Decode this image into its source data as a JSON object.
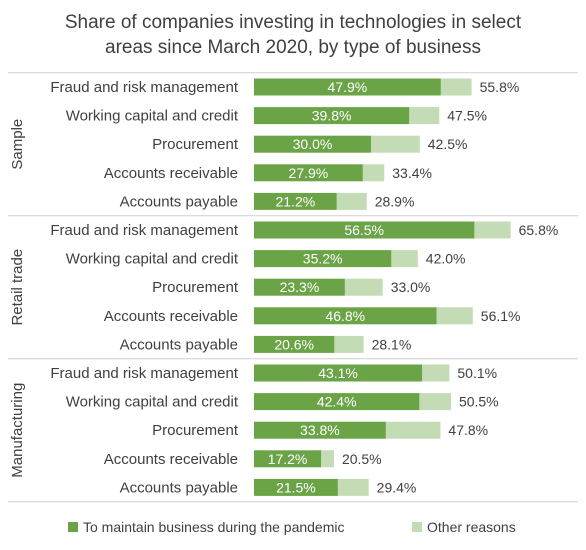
{
  "chart_data": {
    "type": "bar",
    "orientation": "horizontal",
    "stacked": true,
    "title_lines": [
      "Share of companies investing in technologies in select",
      "areas since March 2020, by type of business"
    ],
    "xlim": [
      0,
      70
    ],
    "groups": [
      {
        "name": "Sample",
        "categories": [
          "Fraud and risk management",
          "Working capital and credit",
          "Procurement",
          "Accounts receivable",
          "Accounts payable"
        ],
        "pandemic": [
          47.9,
          39.8,
          30.0,
          27.9,
          21.2
        ],
        "pandemic_labels": [
          "47.9%",
          "39.8%",
          "30.0%",
          "27.9%",
          "21.2%"
        ],
        "total": [
          55.8,
          47.5,
          42.5,
          33.4,
          28.9
        ],
        "total_labels": [
          "55.8%",
          "47.5%",
          "42.5%",
          "33.4%",
          "28.9%"
        ]
      },
      {
        "name": "Retail trade",
        "categories": [
          "Fraud and risk management",
          "Working capital and credit",
          "Procurement",
          "Accounts receivable",
          "Accounts payable"
        ],
        "pandemic": [
          56.5,
          35.2,
          23.3,
          46.8,
          20.6
        ],
        "pandemic_labels": [
          "56.5%",
          "35.2%",
          "23.3%",
          "46.8%",
          "20.6%"
        ],
        "total": [
          65.8,
          42.0,
          33.0,
          56.1,
          28.1
        ],
        "total_labels": [
          "65.8%",
          "42.0%",
          "33.0%",
          "56.1%",
          "28.1%"
        ]
      },
      {
        "name": "Manufacturing",
        "categories": [
          "Fraud and risk management",
          "Working capital and credit",
          "Procurement",
          "Accounts receivable",
          "Accounts payable"
        ],
        "pandemic": [
          43.1,
          42.4,
          33.8,
          17.2,
          21.5
        ],
        "pandemic_labels": [
          "43.1%",
          "42.4%",
          "33.8%",
          "17.2%",
          "21.5%"
        ],
        "total": [
          50.1,
          50.5,
          47.8,
          20.5,
          29.4
        ],
        "total_labels": [
          "50.1%",
          "50.5%",
          "47.8%",
          "20.5%",
          "29.4%"
        ]
      }
    ],
    "legend": {
      "placement": "bottom",
      "entries": [
        {
          "label": "To maintain business during the pandemic",
          "color": "#6ba347"
        },
        {
          "label": "Other reasons",
          "color": "#c4dcb5"
        }
      ]
    },
    "colors": {
      "pandemic": "#6ba347",
      "other": "#c4dcb5",
      "divider": "#d0d0d0"
    }
  }
}
